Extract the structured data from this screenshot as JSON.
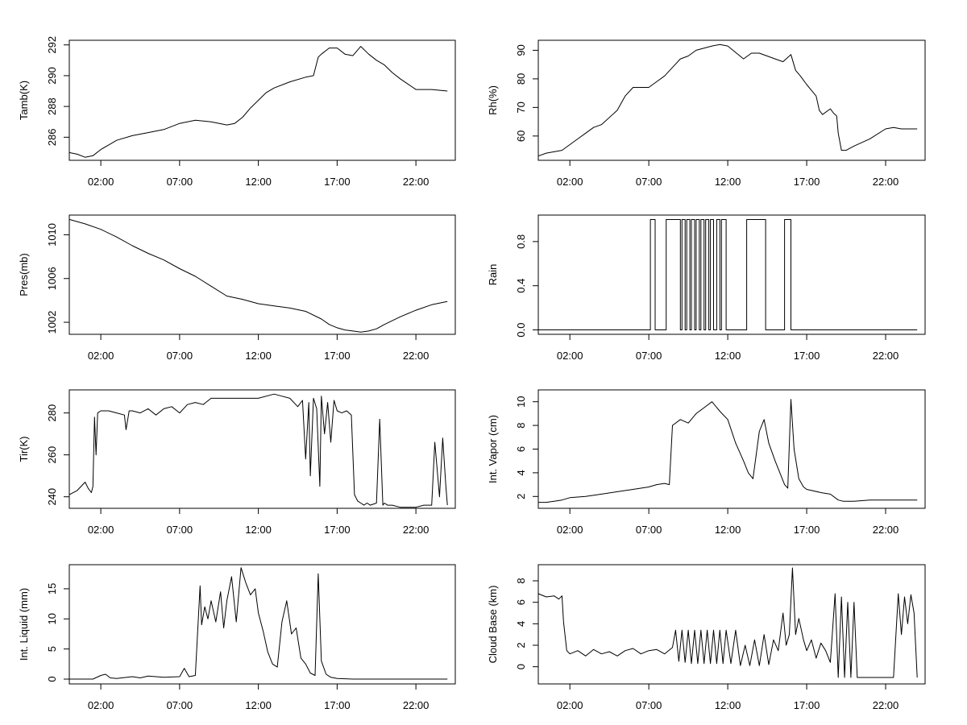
{
  "chart_data": [
    {
      "type": "line",
      "ylabel": "Tamb(K)",
      "xticks": [
        "02:00",
        "07:00",
        "12:00",
        "17:00",
        "22:00"
      ],
      "xlim": [
        0,
        24.5
      ],
      "ylim": [
        284.5,
        292.3
      ],
      "yticks": [
        286,
        288,
        290,
        292
      ],
      "series": [
        {
          "x": [
            0,
            0.5,
            1.0,
            1.5,
            2.0,
            2.5,
            3.0,
            4.0,
            5.0,
            6.0,
            7.0,
            8.0,
            9.0,
            10.0,
            10.5,
            11.0,
            11.5,
            12.0,
            12.5,
            13.0,
            14.0,
            15.0,
            15.5,
            15.8,
            16.0,
            16.5,
            17.0,
            17.5,
            18.0,
            18.5,
            19.0,
            19.5,
            20.0,
            20.5,
            21.0,
            22.0,
            23.0,
            24.0
          ],
          "y": [
            285.0,
            284.9,
            284.7,
            284.8,
            285.2,
            285.5,
            285.8,
            286.1,
            286.3,
            286.5,
            286.9,
            287.1,
            287.0,
            286.8,
            286.9,
            287.3,
            287.9,
            288.4,
            288.9,
            289.2,
            289.6,
            289.9,
            290.0,
            291.2,
            291.4,
            291.8,
            291.8,
            291.4,
            291.3,
            291.9,
            291.4,
            291.0,
            290.7,
            290.2,
            289.8,
            289.1,
            289.1,
            289.0
          ]
        }
      ]
    },
    {
      "type": "line",
      "ylabel": "Rh(%)",
      "xticks": [
        "02:00",
        "07:00",
        "12:00",
        "17:00",
        "22:00"
      ],
      "xlim": [
        0,
        24.5
      ],
      "ylim": [
        51.5,
        93.5
      ],
      "yticks": [
        60,
        70,
        80,
        90
      ],
      "series": [
        {
          "x": [
            0,
            0.5,
            1.0,
            1.5,
            2.0,
            2.5,
            3.0,
            3.5,
            4.0,
            5.0,
            5.5,
            6.0,
            7.0,
            7.5,
            8.0,
            8.5,
            9.0,
            9.5,
            10.0,
            11.0,
            11.5,
            12.0,
            13.0,
            13.5,
            14.0,
            15.0,
            15.5,
            16.0,
            16.3,
            16.6,
            17.0,
            17.3,
            17.6,
            17.8,
            18.0,
            18.5,
            18.7,
            18.9,
            19.0,
            19.2,
            19.5,
            20.0,
            21.0,
            22.0,
            22.5,
            23.0,
            24.0
          ],
          "y": [
            53,
            54,
            54.5,
            55,
            57,
            59,
            61,
            63,
            64,
            69,
            74,
            77,
            77,
            79,
            81,
            84,
            87,
            88,
            90,
            91.5,
            92,
            91.5,
            87,
            89,
            89,
            87,
            86,
            88.5,
            83,
            81,
            78,
            76,
            74,
            69,
            67.5,
            69.5,
            68,
            67,
            61,
            55,
            55,
            56.5,
            59,
            62.5,
            63,
            62.5,
            62.5
          ]
        }
      ]
    },
    {
      "type": "line",
      "ylabel": "Pres(mb)",
      "xticks": [
        "02:00",
        "07:00",
        "12:00",
        "17:00",
        "22:00"
      ],
      "xlim": [
        0,
        24.5
      ],
      "ylim": [
        1000.9,
        1011.8
      ],
      "yticks": [
        1002,
        1006,
        1010
      ],
      "series": [
        {
          "x": [
            0,
            0.5,
            1.0,
            2.0,
            3.0,
            4.0,
            5.0,
            6.0,
            7.0,
            8.0,
            9.0,
            10.0,
            11.0,
            12.0,
            13.0,
            14.0,
            15.0,
            16.0,
            16.5,
            17.0,
            17.5,
            18.0,
            18.5,
            19.0,
            19.5,
            20.0,
            21.0,
            22.0,
            23.0,
            24.0
          ],
          "y": [
            1011.4,
            1011.2,
            1011.0,
            1010.5,
            1009.8,
            1009.0,
            1008.3,
            1007.7,
            1006.9,
            1006.2,
            1005.3,
            1004.4,
            1004.1,
            1003.7,
            1003.5,
            1003.3,
            1003.0,
            1002.3,
            1001.8,
            1001.5,
            1001.3,
            1001.2,
            1001.1,
            1001.2,
            1001.4,
            1001.8,
            1002.5,
            1003.1,
            1003.6,
            1003.9
          ]
        }
      ]
    },
    {
      "type": "line",
      "ylabel": "Rain",
      "xticks": [
        "02:00",
        "07:00",
        "12:00",
        "17:00",
        "22:00"
      ],
      "xlim": [
        0,
        24.5
      ],
      "ylim": [
        -0.04,
        1.04
      ],
      "yticks": [
        0.0,
        0.4,
        0.8
      ],
      "step": true,
      "series": [
        {
          "x": [
            0,
            7.1,
            7.1,
            7.4,
            7.4,
            8.1,
            8.1,
            9.0,
            9.0,
            9.1,
            9.1,
            9.3,
            9.3,
            9.4,
            9.4,
            9.6,
            9.6,
            9.7,
            9.7,
            9.9,
            9.9,
            10.0,
            10.0,
            10.2,
            10.2,
            10.3,
            10.3,
            10.5,
            10.5,
            10.6,
            10.6,
            10.8,
            10.8,
            10.9,
            10.9,
            11.1,
            11.1,
            11.3,
            11.3,
            11.5,
            11.5,
            11.6,
            11.6,
            11.9,
            11.9,
            13.2,
            13.2,
            14.4,
            14.4,
            15.6,
            15.6,
            16.0,
            16.0,
            24.0
          ],
          "y": [
            0,
            0,
            1,
            1,
            0,
            0,
            1,
            1,
            0,
            0,
            1,
            1,
            0,
            0,
            1,
            1,
            0,
            0,
            1,
            1,
            0,
            0,
            1,
            1,
            0,
            0,
            1,
            1,
            0,
            0,
            1,
            1,
            0,
            0,
            1,
            1,
            0,
            0,
            1,
            1,
            0,
            0,
            1,
            1,
            0,
            0,
            1,
            1,
            0,
            0,
            1,
            1,
            0,
            0
          ]
        }
      ]
    },
    {
      "type": "line",
      "ylabel": "Tir(K)",
      "xticks": [
        "02:00",
        "07:00",
        "12:00",
        "17:00",
        "22:00"
      ],
      "xlim": [
        0,
        24.5
      ],
      "ylim": [
        234.5,
        291
      ],
      "yticks": [
        240,
        260,
        280
      ],
      "series": [
        {
          "x": [
            0,
            0.5,
            1.0,
            1.2,
            1.4,
            1.5,
            1.6,
            1.7,
            1.8,
            2.0,
            2.5,
            3.0,
            3.5,
            3.6,
            3.8,
            4.0,
            4.5,
            5.0,
            5.5,
            6.0,
            6.5,
            7.0,
            7.5,
            8.0,
            8.5,
            9.0,
            10.0,
            11.0,
            12.0,
            13.0,
            13.5,
            14.0,
            14.5,
            14.8,
            15.0,
            15.2,
            15.3,
            15.5,
            15.7,
            15.9,
            16.0,
            16.2,
            16.4,
            16.6,
            16.8,
            17.0,
            17.3,
            17.6,
            17.9,
            18.1,
            18.3,
            18.5,
            18.7,
            18.9,
            19.1,
            19.5,
            19.7,
            19.9,
            20.0,
            20.2,
            20.5,
            21.0,
            22.0,
            22.5,
            23.0,
            23.2,
            23.5,
            23.7,
            23.9,
            24.0
          ],
          "y": [
            241,
            243,
            247,
            244,
            242,
            245,
            278,
            260,
            280,
            281,
            281,
            280,
            279,
            272,
            281,
            281,
            280,
            282,
            279,
            282,
            283,
            280,
            284,
            285,
            284,
            287,
            287,
            287,
            287,
            289,
            288,
            287,
            283,
            286,
            258,
            285,
            250,
            287,
            282,
            245,
            288,
            270,
            285,
            266,
            286,
            281,
            280,
            281,
            279,
            241,
            238,
            237,
            236,
            237,
            236,
            237,
            277,
            236,
            237,
            236,
            236,
            235,
            235,
            236,
            236,
            266,
            240,
            268,
            245,
            236
          ]
        }
      ]
    },
    {
      "type": "line",
      "ylabel": "Int. Vapor (cm)",
      "xticks": [
        "02:00",
        "07:00",
        "12:00",
        "17:00",
        "22:00"
      ],
      "xlim": [
        0,
        24.5
      ],
      "ylim": [
        1.0,
        11.0
      ],
      "yticks": [
        2,
        4,
        6,
        8,
        10
      ],
      "series": [
        {
          "x": [
            0,
            0.5,
            1.0,
            1.5,
            2.0,
            3.0,
            4.0,
            5.0,
            6.0,
            7.0,
            7.5,
            8.0,
            8.3,
            8.5,
            9.0,
            9.5,
            10.0,
            10.5,
            11.0,
            11.5,
            12.0,
            12.5,
            13.0,
            13.3,
            13.6,
            14.0,
            14.3,
            14.6,
            15.0,
            15.3,
            15.6,
            15.8,
            16.0,
            16.2,
            16.5,
            16.8,
            17.0,
            18.0,
            18.5,
            19.0,
            19.3,
            19.6,
            20.0,
            21.0,
            22.0,
            23.0,
            24.0
          ],
          "y": [
            1.5,
            1.5,
            1.6,
            1.7,
            1.9,
            2.0,
            2.2,
            2.4,
            2.6,
            2.8,
            3.0,
            3.1,
            3.0,
            8.0,
            8.5,
            8.2,
            9.0,
            9.5,
            10.0,
            9.2,
            8.5,
            6.5,
            5.0,
            4.0,
            3.5,
            7.5,
            8.5,
            6.5,
            5.0,
            4.0,
            3.0,
            2.7,
            10.2,
            6.0,
            3.5,
            2.8,
            2.6,
            2.3,
            2.2,
            1.7,
            1.6,
            1.6,
            1.6,
            1.7,
            1.7,
            1.7,
            1.7
          ]
        }
      ]
    },
    {
      "type": "line",
      "ylabel": "Int. Liquid (mm)",
      "xticks": [
        "02:00",
        "07:00",
        "12:00",
        "17:00",
        "22:00"
      ],
      "xlim": [
        0,
        24.5
      ],
      "ylim": [
        -0.8,
        19.0
      ],
      "yticks": [
        0,
        5,
        10,
        15
      ],
      "series": [
        {
          "x": [
            0,
            1.5,
            2.0,
            2.3,
            2.6,
            3.0,
            4.0,
            4.5,
            5.0,
            6.0,
            7.0,
            7.3,
            7.6,
            8.0,
            8.3,
            8.4,
            8.6,
            8.8,
            9.0,
            9.3,
            9.6,
            9.8,
            10.0,
            10.3,
            10.6,
            10.9,
            11.2,
            11.5,
            11.8,
            12.0,
            12.3,
            12.6,
            12.9,
            13.2,
            13.5,
            13.8,
            14.1,
            14.4,
            14.7,
            15.0,
            15.3,
            15.6,
            15.8,
            16.0,
            16.3,
            16.6,
            17.0,
            18.0,
            19.0,
            20.0,
            21.0,
            22.0,
            23.0,
            24.0
          ],
          "y": [
            0,
            0,
            0.6,
            0.8,
            0.2,
            0.1,
            0.4,
            0.2,
            0.5,
            0.3,
            0.4,
            1.8,
            0.4,
            0.6,
            15.5,
            9.0,
            12.0,
            10.0,
            13.0,
            9.5,
            14.5,
            8.5,
            13.0,
            17.0,
            9.5,
            18.5,
            16.0,
            14.0,
            15.0,
            11.0,
            8.0,
            4.5,
            2.5,
            2.0,
            9.5,
            13.0,
            7.5,
            8.5,
            3.5,
            2.5,
            1.0,
            0.6,
            17.5,
            3.0,
            0.8,
            0.3,
            0.1,
            0,
            0,
            0,
            0,
            0,
            0,
            0
          ]
        }
      ]
    },
    {
      "type": "line",
      "ylabel": "Cloud Base (km)",
      "xticks": [
        "02:00",
        "07:00",
        "12:00",
        "17:00",
        "22:00"
      ],
      "xlim": [
        0,
        24.5
      ],
      "ylim": [
        -1.6,
        9.5
      ],
      "yticks": [
        0,
        2,
        4,
        6,
        8
      ],
      "series": [
        {
          "x": [
            0,
            0.5,
            1.0,
            1.3,
            1.5,
            1.6,
            1.8,
            2.0,
            2.5,
            3.0,
            3.5,
            4.0,
            4.5,
            5.0,
            5.5,
            6.0,
            6.5,
            7.0,
            7.5,
            8.0,
            8.5,
            8.7,
            8.9,
            9.1,
            9.3,
            9.5,
            9.7,
            9.9,
            10.1,
            10.3,
            10.5,
            10.7,
            10.9,
            11.1,
            11.3,
            11.5,
            11.7,
            11.9,
            12.2,
            12.5,
            12.8,
            13.1,
            13.4,
            13.7,
            14.0,
            14.3,
            14.6,
            14.9,
            15.2,
            15.5,
            15.7,
            15.9,
            16.1,
            16.3,
            16.5,
            16.8,
            17.0,
            17.3,
            17.6,
            17.9,
            18.2,
            18.5,
            18.8,
            19.0,
            19.2,
            19.4,
            19.6,
            19.8,
            20.0,
            20.2,
            20.4,
            20.6,
            21.0,
            21.5,
            22.0,
            22.5,
            22.8,
            23.0,
            23.2,
            23.4,
            23.6,
            23.8,
            24.0
          ],
          "y": [
            6.8,
            6.5,
            6.6,
            6.3,
            6.6,
            4.2,
            1.5,
            1.2,
            1.5,
            1.0,
            1.6,
            1.2,
            1.4,
            1.0,
            1.5,
            1.7,
            1.2,
            1.5,
            1.6,
            1.2,
            1.8,
            3.4,
            0.5,
            3.4,
            0.4,
            3.4,
            0.3,
            3.4,
            0.3,
            3.4,
            0.3,
            3.4,
            0.3,
            3.4,
            0.3,
            3.4,
            0.3,
            3.4,
            0.3,
            3.4,
            0.1,
            2.0,
            0.1,
            2.5,
            0.1,
            3.0,
            0.2,
            2.5,
            1.5,
            5.0,
            2.0,
            3.0,
            9.2,
            3.0,
            4.5,
            2.5,
            1.5,
            2.5,
            0.8,
            2.2,
            1.5,
            0.4,
            6.8,
            -1.0,
            6.5,
            -1.0,
            6.0,
            -1.0,
            6.0,
            -1.0,
            -1.0,
            -1.0,
            -1.0,
            -1.0,
            -1.0,
            -1.0,
            6.8,
            3.0,
            6.5,
            4.0,
            6.7,
            5.0,
            -1.0
          ]
        }
      ]
    }
  ]
}
